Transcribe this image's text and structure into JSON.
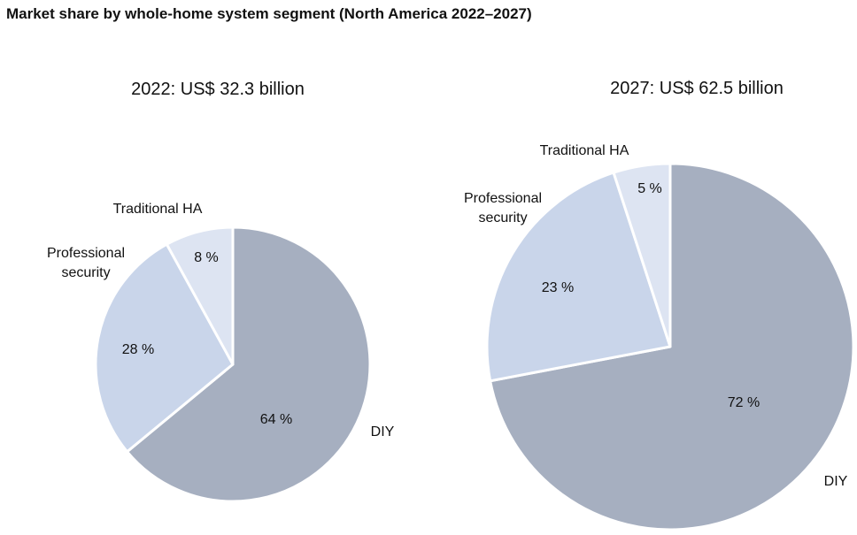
{
  "title": "Market share by whole-home system segment (North America 2022–2027)",
  "chart_data": [
    {
      "type": "pie",
      "title": "2022: US$ 32.3 billion",
      "categories": [
        "DIY",
        "Professional security",
        "Traditional HA"
      ],
      "values": [
        64,
        28,
        8
      ],
      "value_labels": [
        "64 %",
        "28 %",
        "8 %"
      ],
      "colors": [
        "#a6afc0",
        "#c9d5ea",
        "#dde4f2"
      ]
    },
    {
      "type": "pie",
      "title": "2027: US$ 62.5 billion",
      "categories": [
        "DIY",
        "Professional security",
        "Traditional HA"
      ],
      "values": [
        72,
        23,
        5
      ],
      "value_labels": [
        "72 %",
        "23 %",
        "5 %"
      ],
      "colors": [
        "#a6afc0",
        "#c9d5ea",
        "#dde4f2"
      ]
    }
  ]
}
